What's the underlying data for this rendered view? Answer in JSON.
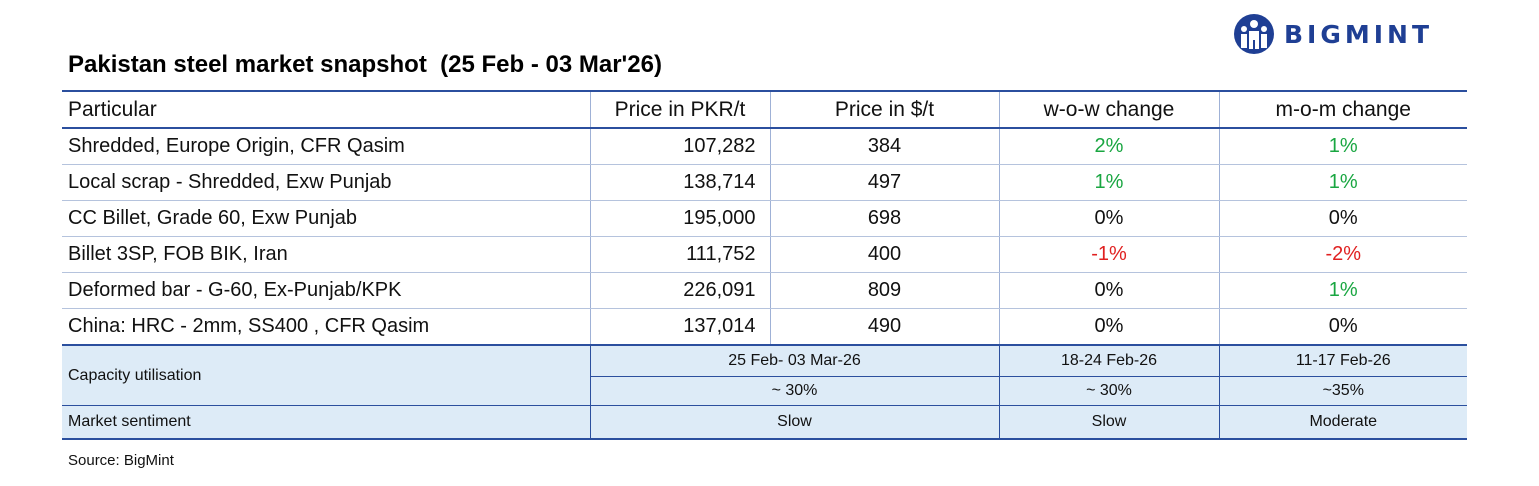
{
  "brand": {
    "name": "BIGMINT",
    "color": "#1f3f94",
    "icon": "bigmint-logo-icon"
  },
  "title": "Pakistan steel market snapshot  (25 Feb - 03 Mar'26)",
  "table": {
    "headers": [
      "Particular",
      "Price in PKR/t",
      "Price in $/t",
      "w-o-w change",
      "m-o-m change"
    ],
    "rows": [
      {
        "particular": "Shredded, Europe Origin, CFR Qasim",
        "pkr": "107,282",
        "usd": "384",
        "wow": "2%",
        "wow_trend": "up",
        "mom": "1%",
        "mom_trend": "up"
      },
      {
        "particular": "Local scrap - Shredded, Exw Punjab",
        "pkr": "138,714",
        "usd": "497",
        "wow": "1%",
        "wow_trend": "up",
        "mom": "1%",
        "mom_trend": "up"
      },
      {
        "particular": "CC Billet, Grade 60, Exw Punjab",
        "pkr": "195,000",
        "usd": "698",
        "wow": "0%",
        "wow_trend": "flat",
        "mom": "0%",
        "mom_trend": "flat"
      },
      {
        "particular": "Billet 3SP, FOB BIK, Iran",
        "pkr": "111,752",
        "usd": "400",
        "wow": "-1%",
        "wow_trend": "down",
        "mom": "-2%",
        "mom_trend": "down"
      },
      {
        "particular": "Deformed bar - G-60, Ex-Punjab/KPK",
        "pkr": "226,091",
        "usd": "809",
        "wow": "0%",
        "wow_trend": "flat",
        "mom": "1%",
        "mom_trend": "up"
      },
      {
        "particular": "China: HRC - 2mm, SS400 , CFR Qasim",
        "pkr": "137,014",
        "usd": "490",
        "wow": "0%",
        "wow_trend": "flat",
        "mom": "0%",
        "mom_trend": "flat"
      }
    ],
    "capacity": {
      "label": "Capacity utilisation",
      "periods": [
        "25 Feb- 03 Mar-26",
        "18-24 Feb-26",
        "11-17 Feb-26"
      ],
      "values": [
        "~ 30%",
        "~ 30%",
        "~35%"
      ]
    },
    "sentiment": {
      "label": "Market sentiment",
      "values": [
        "Slow",
        "Slow",
        "Moderate"
      ]
    }
  },
  "colors": {
    "up": "#19a641",
    "down": "#e02020",
    "accent_border": "#2b4f9e",
    "band_bg": "#ddebf7"
  },
  "source": "Source: BigMint"
}
